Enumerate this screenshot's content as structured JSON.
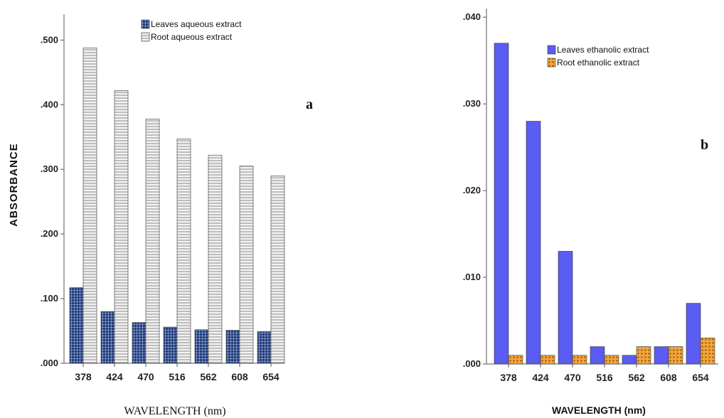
{
  "chart_data": [
    {
      "type": "bar",
      "panel_label": "a",
      "title": "",
      "xlabel": "WAVELENGTH (nm)",
      "ylabel": "ABSORBANCE",
      "categories": [
        "378",
        "424",
        "470",
        "516",
        "562",
        "608",
        "654"
      ],
      "ylim": [
        0,
        0.54
      ],
      "yticks": [
        0.0,
        0.1,
        0.2,
        0.3,
        0.4,
        0.5
      ],
      "ytick_labels": [
        ".000",
        ".100",
        ".200",
        ".300",
        ".400",
        ".500"
      ],
      "legend_position": "top-right",
      "grid": false,
      "series": [
        {
          "name": "Leaves aqueous extract",
          "values": [
            0.117,
            0.08,
            0.063,
            0.056,
            0.052,
            0.051,
            0.049
          ],
          "color": "#1f3a78",
          "pattern": "grid"
        },
        {
          "name": "Root aqueous extract",
          "values": [
            0.488,
            0.422,
            0.378,
            0.347,
            0.322,
            0.305,
            0.29
          ],
          "color": "#e6e6e6",
          "pattern": "horizontal-lines"
        }
      ]
    },
    {
      "type": "bar",
      "panel_label": "b",
      "title": "",
      "xlabel": "WAVELENGTH (nm)",
      "ylabel": "",
      "categories": [
        "378",
        "424",
        "470",
        "516",
        "562",
        "608",
        "654"
      ],
      "ylim": [
        0,
        0.041
      ],
      "yticks": [
        0.0,
        0.01,
        0.02,
        0.03,
        0.04
      ],
      "ytick_labels": [
        ".000",
        ".010",
        ".020",
        ".030",
        ".040"
      ],
      "legend_position": "top-right",
      "grid": false,
      "series": [
        {
          "name": "Leaves ethanolic extract",
          "values": [
            0.037,
            0.028,
            0.013,
            0.002,
            0.001,
            0.002,
            0.007
          ],
          "color": "#5a5cf2",
          "pattern": "solid"
        },
        {
          "name": "Root ethanolic extract",
          "values": [
            0.001,
            0.001,
            0.001,
            0.001,
            0.002,
            0.002,
            0.003
          ],
          "color": "#f0a030",
          "pattern": "dots"
        }
      ]
    }
  ]
}
